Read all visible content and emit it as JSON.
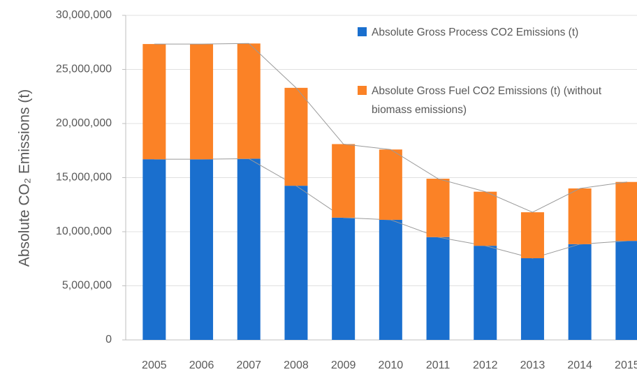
{
  "chart_data": {
    "type": "stacked_bar",
    "y_label": "Absolute CO₂ Emissions (t)",
    "categories": [
      "2005",
      "2006",
      "2007",
      "2008",
      "2009",
      "2010",
      "2011",
      "2012",
      "2013",
      "2014",
      "2015"
    ],
    "series": [
      {
        "name": "Absolute Gross Process CO2 Emissions (t)",
        "color": "#1a6fce",
        "values": [
          16700000,
          16700000,
          16750000,
          14250000,
          11300000,
          11100000,
          9500000,
          8700000,
          7550000,
          8850000,
          9150000
        ]
      },
      {
        "name": "Absolute Gross Fuel CO2 Emissions (t) (without biomass emissions)",
        "color": "#fb8226",
        "values": [
          10650000,
          10650000,
          10650000,
          9050000,
          6800000,
          6500000,
          5400000,
          5000000,
          4250000,
          5150000,
          5450000
        ]
      }
    ],
    "ylim": [
      0,
      30000000
    ],
    "yticks": [
      0,
      {
        "value": 5000000,
        "label": "5,000,000"
      },
      {
        "value": 10000000,
        "label": "10,000,000"
      },
      {
        "value": 15000000,
        "label": "15,000,000"
      },
      {
        "value": 20000000,
        "label": "20,000,000"
      },
      {
        "value": 25000000,
        "label": "25,000,000"
      },
      {
        "value": 30000000,
        "label": "30,000,000"
      }
    ],
    "grid": true
  }
}
